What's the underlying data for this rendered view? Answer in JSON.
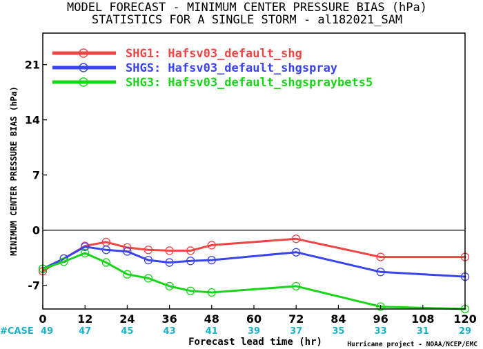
{
  "chart_data": {
    "type": "line",
    "title": "MODEL FORECAST - MINIMUM CENTER PRESSURE BIAS (hPa)",
    "subtitle": "STATISTICS FOR A SINGLE STORM - al182021_SAM",
    "xlabel": "Forecast lead time (hr)",
    "ylabel": "MINIMUM CENTER PRESSURE BIAS (hPa)",
    "xlim": [
      0,
      120
    ],
    "ylim": [
      -10,
      25
    ],
    "x_ticks": [
      0,
      12,
      24,
      36,
      48,
      60,
      72,
      84,
      96,
      108,
      120
    ],
    "y_ticks": [
      -7,
      0,
      7,
      14,
      21
    ],
    "zero_line": true,
    "legend_position": "top-left",
    "series": [
      {
        "name": "SHG1: Hafsv03_default_shg",
        "color": "#f04545",
        "x": [
          0,
          6,
          12,
          18,
          24,
          30,
          36,
          42,
          48,
          72,
          96,
          120
        ],
        "values": [
          -5.2,
          -3.6,
          -2.0,
          -1.5,
          -2.2,
          -2.5,
          -2.6,
          -2.6,
          -1.9,
          -1.1,
          -3.4,
          -3.4
        ]
      },
      {
        "name": "SHGS: Hafsv03_default_shgspray",
        "color": "#3a43f0",
        "x": [
          0,
          6,
          12,
          18,
          24,
          30,
          36,
          42,
          48,
          72,
          96,
          120
        ],
        "values": [
          -4.9,
          -3.6,
          -2.1,
          -2.5,
          -2.7,
          -3.8,
          -4.1,
          -3.9,
          -3.8,
          -2.8,
          -5.3,
          -5.9
        ]
      },
      {
        "name": "SHG3: Hafsv03_default_shgspraybets5",
        "color": "#1ad41a",
        "x": [
          0,
          6,
          12,
          18,
          24,
          30,
          36,
          42,
          48,
          72,
          96,
          120
        ],
        "values": [
          -4.9,
          -4.0,
          -2.9,
          -4.1,
          -5.6,
          -6.1,
          -7.1,
          -7.7,
          -7.9,
          -7.1,
          -9.7,
          -11.0
        ]
      }
    ],
    "case_label": "#CASE",
    "case_counts": [
      "49",
      "47",
      "45",
      "43",
      "41",
      "39",
      "37",
      "35",
      "33",
      "31",
      "29"
    ],
    "colors": {
      "case_label": "#1ab0c8",
      "case_counts": "#1ab0c8"
    },
    "credit": "Hurricane project - NOAA/NCEP/EMC"
  }
}
